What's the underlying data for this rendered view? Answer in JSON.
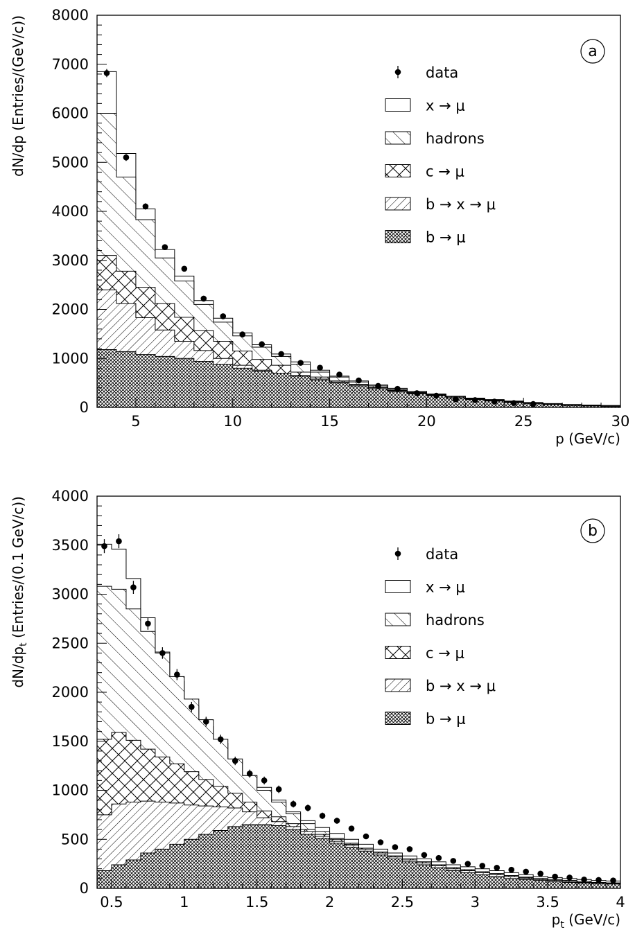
{
  "chart_data": [
    {
      "type": "histogram",
      "panel_label": "a",
      "xlabel": "p (GeV/c)",
      "ylabel": "dN/dp (Entries/(GeV/c))",
      "xlim": [
        3,
        30
      ],
      "ylim": [
        0,
        8000
      ],
      "x_ticks": [
        5,
        10,
        15,
        20,
        25,
        30
      ],
      "y_ticks": [
        0,
        1000,
        2000,
        3000,
        4000,
        5000,
        6000,
        7000,
        8000
      ],
      "bin_edges": [
        3,
        4,
        5,
        6,
        7,
        8,
        9,
        10,
        11,
        12,
        13,
        14,
        15,
        16,
        17,
        18,
        19,
        20,
        21,
        22,
        23,
        24,
        25,
        26,
        27,
        28,
        29,
        30
      ],
      "stacked_cumulative": [
        {
          "name": "b → μ",
          "fill": "crosshatch-dense",
          "values": [
            1180,
            1140,
            1080,
            1040,
            1000,
            940,
            880,
            800,
            740,
            700,
            640,
            560,
            500,
            440,
            380,
            320,
            280,
            240,
            190,
            160,
            130,
            100,
            80,
            60,
            40,
            30,
            20
          ]
        },
        {
          "name": "b → x → μ",
          "fill": "hatch-diag-up",
          "values": [
            2400,
            2120,
            1830,
            1580,
            1350,
            1160,
            1000,
            860,
            760,
            700,
            650,
            580,
            520,
            460,
            400,
            340,
            290,
            250,
            200,
            170,
            140,
            110,
            90,
            70,
            50,
            40,
            30
          ]
        },
        {
          "name": "c → μ",
          "fill": "crosshatch",
          "values": [
            3100,
            2780,
            2450,
            2120,
            1840,
            1570,
            1350,
            1150,
            980,
            860,
            720,
            620,
            540,
            470,
            410,
            350,
            300,
            260,
            220,
            180,
            150,
            120,
            90,
            70,
            50,
            40,
            30
          ]
        },
        {
          "name": "hadrons",
          "fill": "hatch-diag-down",
          "values": [
            6000,
            4700,
            3830,
            3050,
            2580,
            2100,
            1740,
            1460,
            1230,
            1040,
            880,
            720,
            620,
            520,
            440,
            370,
            310,
            260,
            220,
            180,
            150,
            120,
            95,
            75,
            55,
            45,
            35
          ]
        },
        {
          "name": "x → μ",
          "fill": "open",
          "values": [
            6850,
            5180,
            4050,
            3220,
            2680,
            2180,
            1820,
            1520,
            1280,
            1090,
            930,
            760,
            640,
            540,
            460,
            390,
            330,
            275,
            230,
            190,
            160,
            130,
            100,
            80,
            60,
            50,
            40
          ]
        }
      ],
      "data_points": {
        "name": "data",
        "x": [
          3.5,
          4.5,
          5.5,
          6.5,
          7.5,
          8.5,
          9.5,
          10.5,
          11.5,
          12.5,
          13.5,
          14.5,
          15.5,
          16.5,
          17.5,
          18.5,
          19.5,
          20.5,
          21.5,
          22.5,
          23.5,
          24.5,
          25.5
        ],
        "y": [
          6820,
          5100,
          4100,
          3270,
          2830,
          2220,
          1860,
          1490,
          1290,
          1090,
          910,
          810,
          670,
          550,
          440,
          380,
          290,
          240,
          170,
          150,
          120,
          90,
          70
        ]
      },
      "legend_placement": "right",
      "legend_symbols": {
        "data": "point",
        "x → μ": "open",
        "hadrons": "hatch-diag-down",
        "c → μ": "crosshatch",
        "b → x → μ": "hatch-diag-up",
        "b → μ": "crosshatch-dense"
      }
    },
    {
      "type": "histogram",
      "panel_label": "b",
      "xlabel": "p_t (GeV/c)",
      "xlabel_main": "p",
      "xlabel_sub": "t",
      "xlabel_rest": " (GeV/c)",
      "ylabel": "dN/dp_t (Entries/(0.1 GeV/c))",
      "ylabel_main": "dN/dp",
      "ylabel_sub": "t",
      "ylabel_rest": " (Entries/(0.1 GeV/c))",
      "xlim": [
        0.4,
        4.0
      ],
      "ylim": [
        0,
        4000
      ],
      "x_ticks": [
        0.5,
        1,
        1.5,
        2,
        2.5,
        3,
        3.5,
        4
      ],
      "y_ticks": [
        0,
        500,
        1000,
        1500,
        2000,
        2500,
        3000,
        3500,
        4000
      ],
      "bin_edges": [
        0.4,
        0.5,
        0.6,
        0.7,
        0.8,
        0.9,
        1.0,
        1.1,
        1.2,
        1.3,
        1.4,
        1.5,
        1.6,
        1.7,
        1.8,
        1.9,
        2.0,
        2.1,
        2.2,
        2.3,
        2.4,
        2.5,
        2.6,
        2.7,
        2.8,
        2.9,
        3.0,
        3.1,
        3.2,
        3.3,
        3.4,
        3.5,
        3.6,
        3.7,
        3.8,
        3.9,
        4.0
      ],
      "stacked_cumulative": [
        {
          "name": "b → μ",
          "fill": "crosshatch-dense",
          "values": [
            180,
            240,
            290,
            360,
            400,
            450,
            500,
            550,
            590,
            630,
            650,
            650,
            640,
            600,
            550,
            510,
            460,
            420,
            380,
            340,
            300,
            270,
            240,
            210,
            180,
            160,
            140,
            120,
            100,
            90,
            80,
            70,
            60,
            55,
            50,
            45
          ]
        },
        {
          "name": "b → x → μ",
          "fill": "hatch-diag-up",
          "values": [
            750,
            860,
            880,
            890,
            880,
            870,
            850,
            840,
            830,
            820,
            780,
            720,
            680,
            630,
            580,
            530,
            480,
            440,
            400,
            360,
            320,
            290,
            260,
            230,
            200,
            180,
            160,
            140,
            120,
            100,
            90,
            80,
            70,
            60,
            55,
            50
          ]
        },
        {
          "name": "c → μ",
          "fill": "crosshatch",
          "values": [
            1520,
            1590,
            1510,
            1420,
            1340,
            1270,
            1190,
            1110,
            1040,
            970,
            880,
            790,
            730,
            660,
            600,
            550,
            500,
            450,
            410,
            370,
            330,
            300,
            270,
            240,
            210,
            190,
            170,
            150,
            130,
            110,
            100,
            90,
            80,
            70,
            60,
            55
          ]
        },
        {
          "name": "hadrons",
          "fill": "hatch-diag-down",
          "values": [
            3080,
            3050,
            2850,
            2620,
            2400,
            2160,
            1930,
            1720,
            1520,
            1320,
            1150,
            1000,
            880,
            760,
            660,
            580,
            510,
            460,
            410,
            370,
            330,
            300,
            270,
            240,
            210,
            190,
            170,
            150,
            130,
            115,
            100,
            90,
            80,
            70,
            60,
            55
          ]
        },
        {
          "name": "x → μ",
          "fill": "open",
          "values": [
            3510,
            3460,
            3160,
            2760,
            2410,
            2110,
            1860,
            1650,
            1480,
            1300,
            1150,
            1030,
            900,
            780,
            690,
            620,
            560,
            500,
            450,
            400,
            360,
            330,
            300,
            270,
            240,
            220,
            200,
            180,
            160,
            140,
            120,
            110,
            100,
            90,
            80,
            75
          ]
        }
      ],
      "data_points": {
        "name": "data",
        "x": [
          0.45,
          0.55,
          0.65,
          0.75,
          0.85,
          0.95,
          1.05,
          1.15,
          1.25,
          1.35,
          1.45,
          1.55,
          1.65,
          1.75,
          1.85,
          1.95,
          2.05,
          2.15,
          2.25,
          2.35,
          2.45,
          2.55,
          2.65,
          2.75,
          2.85,
          2.95,
          3.05,
          3.15,
          3.25,
          3.35,
          3.45,
          3.55,
          3.65,
          3.75,
          3.85,
          3.95
        ],
        "y": [
          3490,
          3540,
          3070,
          2700,
          2400,
          2180,
          1850,
          1700,
          1520,
          1300,
          1170,
          1100,
          1010,
          860,
          820,
          740,
          690,
          610,
          530,
          470,
          420,
          400,
          340,
          310,
          280,
          250,
          230,
          210,
          190,
          170,
          150,
          120,
          110,
          90,
          85,
          80
        ]
      },
      "legend_placement": "right",
      "legend_symbols": {
        "data": "point",
        "x → μ": "open",
        "hadrons": "hatch-diag-down",
        "c → μ": "crosshatch",
        "b → x → μ": "hatch-diag-up",
        "b → μ": "crosshatch-dense"
      }
    }
  ]
}
